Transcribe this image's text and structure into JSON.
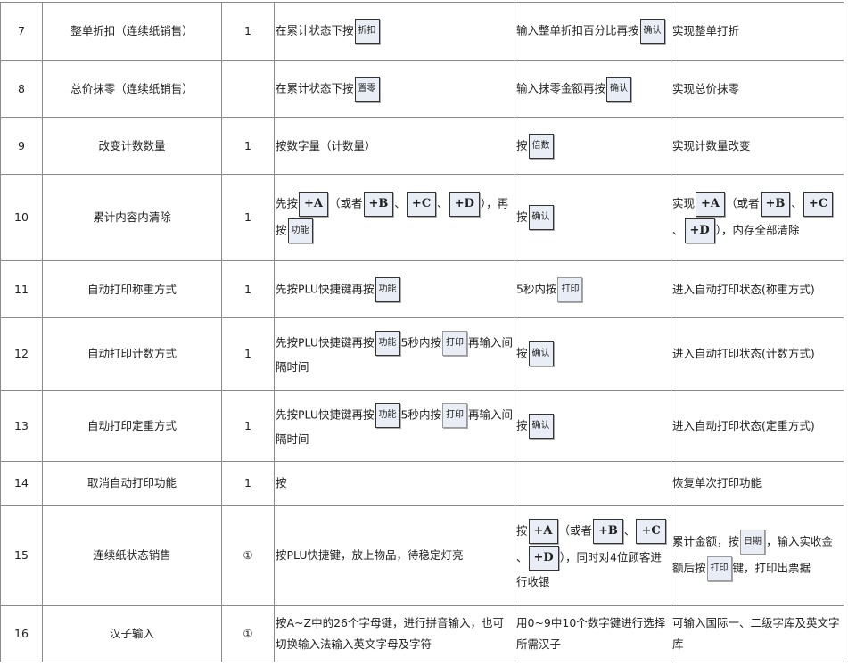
{
  "rows": [
    {
      "no": "7",
      "name": "整单折扣（连续纸销售）",
      "count": "1",
      "op1": [
        {
          "t": "在累计状态下按"
        },
        {
          "k": "折扣"
        }
      ],
      "op2": [
        {
          "t": "输入整单折扣百分比再按"
        },
        {
          "k": "确认"
        }
      ],
      "result": [
        {
          "t": "实现整单打折"
        }
      ]
    },
    {
      "no": "8",
      "name": "总价抹零（连续纸销售）",
      "count": "",
      "op1": [
        {
          "t": "在累计状态下按"
        },
        {
          "k": "置零"
        }
      ],
      "op2": [
        {
          "t": "输入抹零金额再按"
        },
        {
          "k": "确认"
        }
      ],
      "result": [
        {
          "t": "实现总价抹零"
        }
      ]
    },
    {
      "no": "9",
      "name": "改变计数数量",
      "count": "1",
      "op1": [
        {
          "t": "按数字量（计数量）"
        }
      ],
      "op2": [
        {
          "t": "按"
        },
        {
          "k": "倍数"
        }
      ],
      "result": [
        {
          "t": "实现计数量改变"
        }
      ]
    },
    {
      "no": "10",
      "name": "累计内容内清除",
      "count": "1",
      "op1": [
        {
          "t": "先按"
        },
        {
          "k": "+A",
          "b": 1
        },
        {
          "t": "（或者"
        },
        {
          "k": "+B",
          "b": 1
        },
        {
          "t": "、"
        },
        {
          "k": "+C",
          "b": 1
        },
        {
          "t": "、"
        },
        {
          "k": "+D",
          "b": 1
        },
        {
          "t": "），再按"
        },
        {
          "k": "功能"
        }
      ],
      "op2": [
        {
          "t": "按"
        },
        {
          "k": "确认"
        }
      ],
      "result": [
        {
          "t": "实现"
        },
        {
          "k": "+A",
          "b": 1
        },
        {
          "t": "（或者"
        },
        {
          "k": "+B",
          "b": 1
        },
        {
          "t": "、"
        },
        {
          "k": "+C",
          "b": 1
        },
        {
          "t": "、"
        },
        {
          "k": "+D",
          "b": 1
        },
        {
          "t": "），内存全部清除"
        }
      ]
    },
    {
      "no": "11",
      "name": "自动打印称重方式",
      "count": "1",
      "op1": [
        {
          "t": "先按PLU快捷键再按"
        },
        {
          "k": "功能"
        }
      ],
      "op2": [
        {
          "t": "5秒内按"
        },
        {
          "k": "打印",
          "l": 1
        }
      ],
      "result": [
        {
          "t": "进入自动打印状态(称重方式)"
        }
      ]
    },
    {
      "no": "12",
      "name": "自动打印计数方式",
      "count": "1",
      "op1": [
        {
          "t": "先按PLU快捷键再按"
        },
        {
          "k": "功能"
        },
        {
          "t": "5秒内按"
        },
        {
          "k": "打印",
          "l": 1
        },
        {
          "t": "再输入间隔时间"
        }
      ],
      "op2": [
        {
          "t": "按"
        },
        {
          "k": "确认"
        }
      ],
      "result": [
        {
          "t": "进入自动打印状态(计数方式)"
        }
      ]
    },
    {
      "no": "13",
      "name": "自动打印定重方式",
      "count": "1",
      "op1": [
        {
          "t": "先按PLU快捷键再按"
        },
        {
          "k": "功能"
        },
        {
          "t": "5秒内按"
        },
        {
          "k": "打印",
          "l": 1
        },
        {
          "t": "再输入间隔时间"
        }
      ],
      "op2": [
        {
          "t": "按"
        },
        {
          "k": "确认"
        }
      ],
      "result": [
        {
          "t": "进入自动打印状态(定重方式)"
        }
      ]
    },
    {
      "no": "14",
      "name": "取消自动打印功能",
      "count": "1",
      "op1": [
        {
          "t": "按"
        }
      ],
      "op2": [],
      "result": [
        {
          "t": "恢复单次打印功能"
        }
      ]
    },
    {
      "no": "15",
      "name": "连续纸状态销售",
      "count": "①",
      "op1": [
        {
          "t": "按PLU快捷键，放上物品，待稳定灯亮"
        }
      ],
      "op2": [
        {
          "t": "按"
        },
        {
          "k": "+A",
          "b": 1
        },
        {
          "t": "（或者"
        },
        {
          "k": "+B",
          "b": 1
        },
        {
          "t": "、"
        },
        {
          "k": "+C",
          "b": 1
        },
        {
          "t": "、"
        },
        {
          "k": "+D",
          "b": 1
        },
        {
          "t": "），同时对4位顾客进行收银"
        }
      ],
      "result": [
        {
          "t": "累计金额，按"
        },
        {
          "k": "日期",
          "l": 1
        },
        {
          "t": "，输入实收金额后按"
        },
        {
          "k": "打印",
          "l": 1
        },
        {
          "t": "键，打印出票据"
        }
      ]
    },
    {
      "no": "16",
      "name": "汉子输入",
      "count": "①",
      "op1": [
        {
          "t": "按A~Z中的26个字母键，进行拼音输入，也可切换输入法输入英文字母及字符"
        }
      ],
      "op2": [
        {
          "t": "用0~9中10个数字键进行选择所需汉子"
        }
      ],
      "result": [
        {
          "t": "可输入国际一、二级字库及英文字库"
        }
      ]
    }
  ]
}
